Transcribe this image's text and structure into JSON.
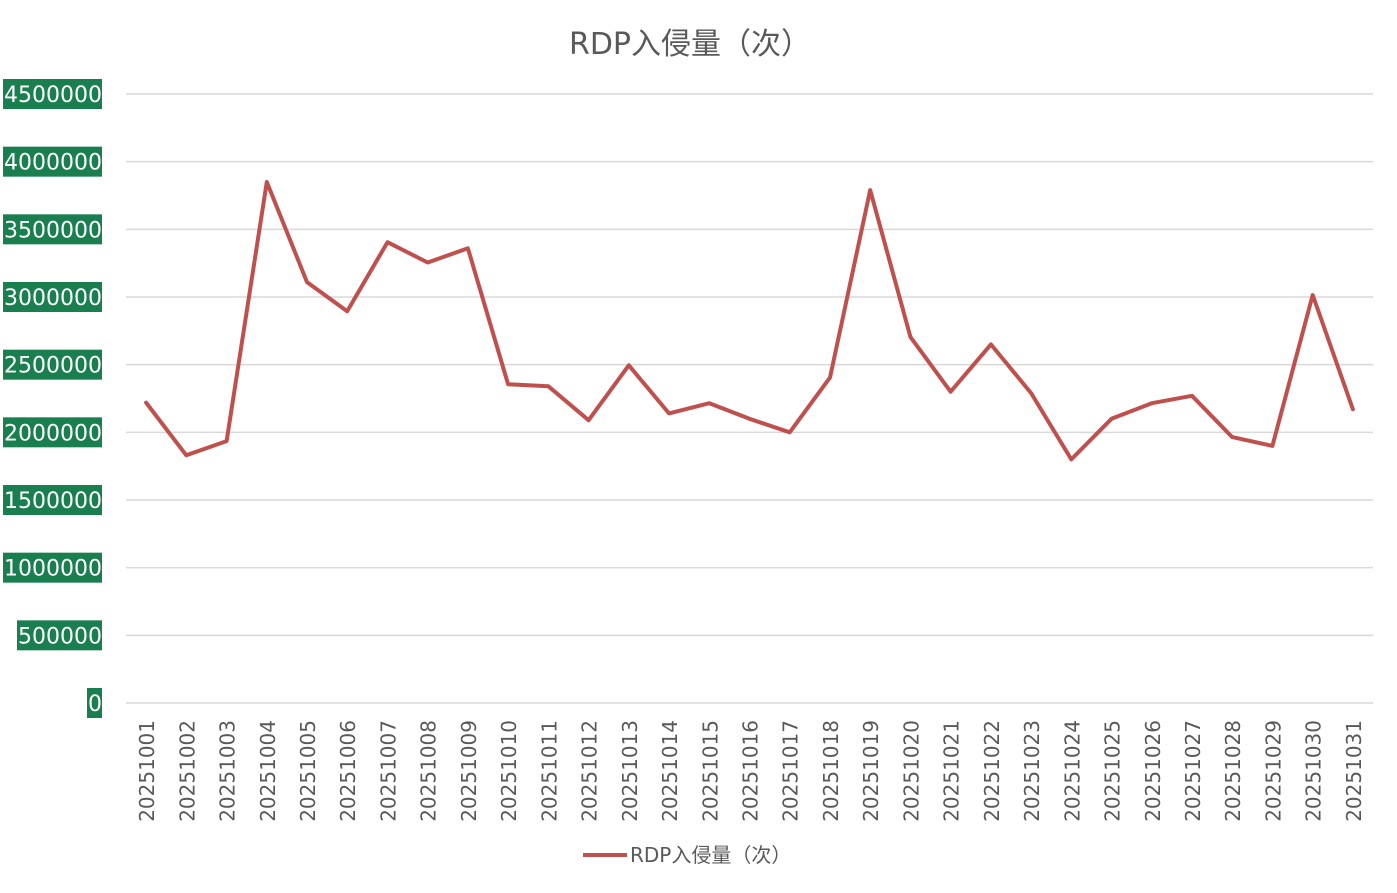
{
  "chart_data": {
    "type": "line",
    "title": "RDP入侵量（次）",
    "xlabel": "",
    "ylabel": "",
    "categories": [
      "20251001",
      "20251002",
      "20251003",
      "20251004",
      "20251005",
      "20251006",
      "20251007",
      "20251008",
      "20251009",
      "20251010",
      "20251011",
      "20251012",
      "20251013",
      "20251014",
      "20251015",
      "20251016",
      "20251017",
      "20251018",
      "20251019",
      "20251020",
      "20251021",
      "20251022",
      "20251023",
      "20251024",
      "20251025",
      "20251026",
      "20251027",
      "20251028",
      "20251029",
      "20251030",
      "20251031"
    ],
    "y_ticks": [
      "0",
      "500000",
      "1000000",
      "1500000",
      "2000000",
      "2500000",
      "3000000",
      "3500000",
      "4000000",
      "4500000"
    ],
    "ylim": [
      0,
      4500000
    ],
    "grid": true,
    "legend_position": "bottom",
    "series": [
      {
        "name": "RDP入侵量（次）",
        "color": "#c0504d",
        "values": [
          2220000,
          1830000,
          1935000,
          3850000,
          3110000,
          2895000,
          3405000,
          3255000,
          3360000,
          2355000,
          2340000,
          2090000,
          2495000,
          2140000,
          2215000,
          2100000,
          2000000,
          2405000,
          3790000,
          2705000,
          2300000,
          2650000,
          2290000,
          1800000,
          2100000,
          2215000,
          2270000,
          1965000,
          1900000,
          3015000,
          2170000
        ]
      }
    ],
    "tick_label_bg": "#1a7f4e",
    "tick_label_color": "#ffffff",
    "gridline_color": "#d9d9d9"
  }
}
